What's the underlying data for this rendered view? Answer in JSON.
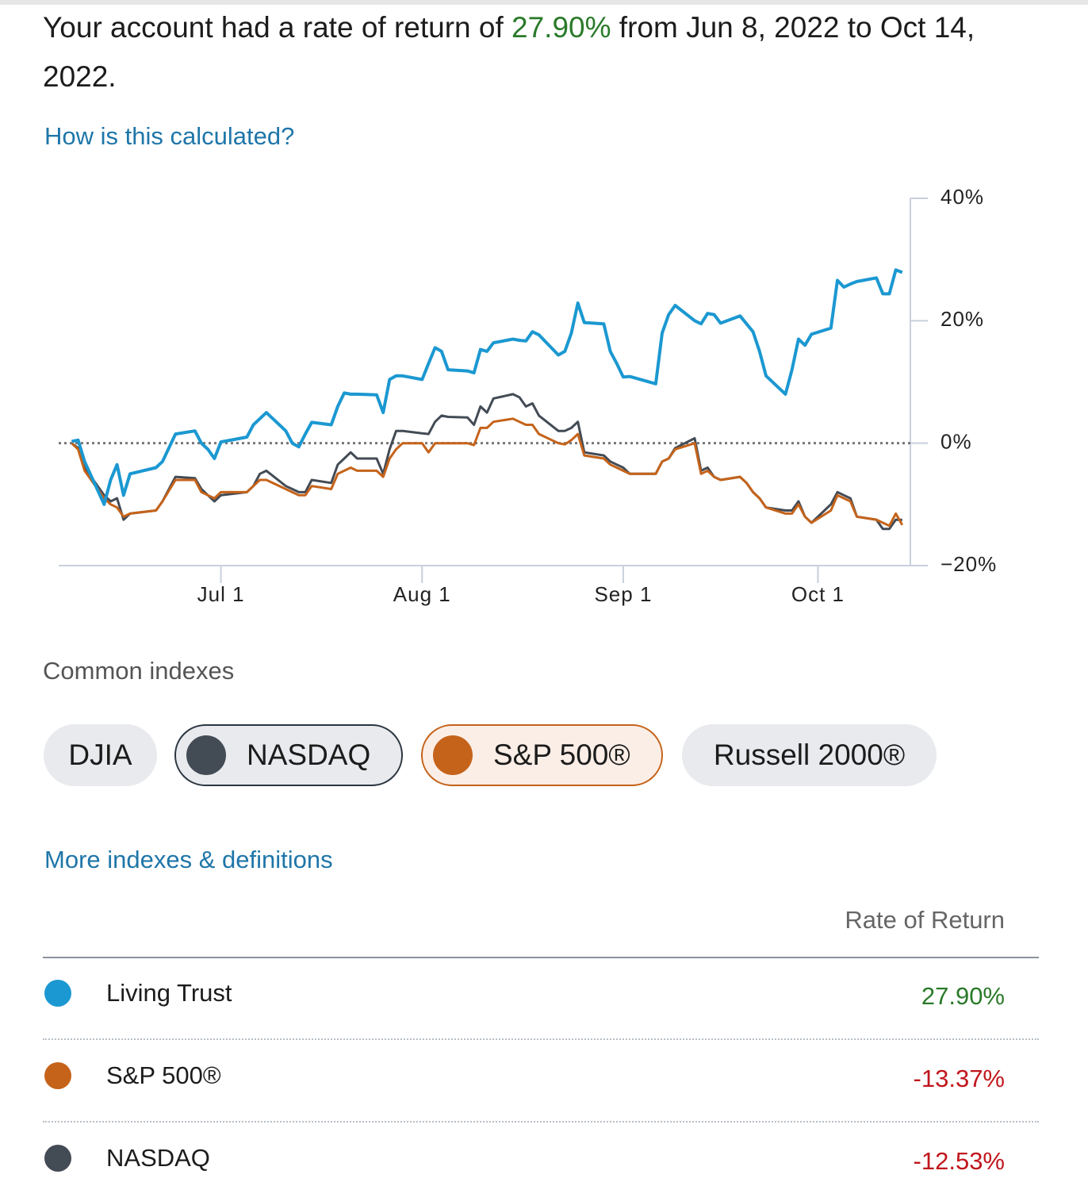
{
  "header": {
    "prefix": "Your account had a rate of return of ",
    "value": "27.90%",
    "suffix": " from Jun 8, 2022 to Oct 14, 2022."
  },
  "calc_link": "How is this calculated?",
  "chart_data": {
    "type": "line",
    "x": [
      "Jun 8",
      "Jun 9",
      "Jun 10",
      "Jun 13",
      "Jun 14",
      "Jun 15",
      "Jun 16",
      "Jun 17",
      "Jun 21",
      "Jun 22",
      "Jun 24",
      "Jun 27",
      "Jun 28",
      "Jun 29",
      "Jun 30",
      "Jul 1",
      "Jul 5",
      "Jul 6",
      "Jul 7",
      "Jul 8",
      "Jul 11",
      "Jul 12",
      "Jul 13",
      "Jul 14",
      "Jul 15",
      "Jul 18",
      "Jul 19",
      "Jul 20",
      "Jul 21",
      "Jul 22",
      "Jul 25",
      "Jul 26",
      "Jul 27",
      "Jul 28",
      "Jul 29",
      "Aug 1",
      "Aug 2",
      "Aug 3",
      "Aug 4",
      "Aug 5",
      "Aug 8",
      "Aug 9",
      "Aug 10",
      "Aug 11",
      "Aug 12",
      "Aug 15",
      "Aug 16",
      "Aug 17",
      "Aug 18",
      "Aug 19",
      "Aug 22",
      "Aug 23",
      "Aug 24",
      "Aug 25",
      "Aug 26",
      "Aug 29",
      "Aug 30",
      "Aug 31",
      "Sep 1",
      "Sep 2",
      "Sep 6",
      "Sep 7",
      "Sep 8",
      "Sep 9",
      "Sep 12",
      "Sep 13",
      "Sep 14",
      "Sep 15",
      "Sep 16",
      "Sep 19",
      "Sep 20",
      "Sep 21",
      "Sep 22",
      "Sep 23",
      "Sep 26",
      "Sep 27",
      "Sep 28",
      "Sep 29",
      "Sep 30",
      "Oct 3",
      "Oct 4",
      "Oct 5",
      "Oct 6",
      "Oct 7",
      "Oct 10",
      "Oct 11",
      "Oct 12",
      "Oct 13",
      "Oct 14"
    ],
    "series": [
      {
        "name": "Living Trust",
        "color": "#1b98d1",
        "values": [
          0.3,
          0.5,
          -3,
          -10,
          -6,
          -3.5,
          -8.5,
          -5,
          -4,
          -3,
          1.5,
          2,
          0,
          -1,
          -2.5,
          0.2,
          1,
          3,
          4,
          5,
          2,
          0,
          -0.6,
          1.5,
          3.4,
          3,
          6,
          8.2,
          8,
          8,
          7.9,
          5,
          10.4,
          11,
          11,
          10.4,
          13,
          15.6,
          15,
          12,
          11.8,
          11.5,
          15.3,
          15,
          16.4,
          17,
          16.8,
          16.7,
          18.2,
          17.7,
          14.4,
          15,
          18,
          22.9,
          19.7,
          19.5,
          15,
          13,
          10.8,
          10.9,
          9.7,
          18,
          21,
          22.5,
          20,
          19.5,
          21.2,
          21,
          19.6,
          20.8,
          19.5,
          18.2,
          15,
          11,
          8,
          12,
          17,
          16,
          17.8,
          18.8,
          26.6,
          25.5,
          26,
          26.4,
          27,
          24.4,
          24.4,
          28.3,
          27.9
        ]
      },
      {
        "name": "S&P 500®",
        "color": "#c5631a",
        "values": [
          0,
          -1,
          -4.5,
          -9,
          -10,
          -10.5,
          -12,
          -11.5,
          -11,
          -9.5,
          -6,
          -6,
          -8,
          -8.5,
          -9,
          -8,
          -8,
          -7,
          -6,
          -6,
          -7.5,
          -8,
          -8.5,
          -8.5,
          -7,
          -7.5,
          -5,
          -4.5,
          -4,
          -4.5,
          -4.5,
          -5.5,
          -2.5,
          -1,
          0,
          0,
          -1.5,
          0,
          0,
          0,
          0,
          -0.3,
          2.5,
          2.5,
          3.5,
          4,
          3.5,
          3,
          3,
          1.5,
          0,
          -0.2,
          0.5,
          1.5,
          -2,
          -2.5,
          -3.5,
          -4,
          -4.5,
          -5,
          -5,
          -3,
          -2.5,
          -1,
          0,
          -5,
          -4.5,
          -5.5,
          -6,
          -5.5,
          -6.5,
          -8,
          -9,
          -10.5,
          -11.5,
          -11.5,
          -10,
          -12,
          -13,
          -11,
          -8.5,
          -9,
          -9.5,
          -12,
          -12.5,
          -13,
          -13.5,
          -11.5,
          -13.37
        ]
      },
      {
        "name": "NASDAQ",
        "color": "#434b55",
        "values": [
          0,
          -0.8,
          -4,
          -8.5,
          -9.5,
          -9,
          -12.5,
          -11.5,
          -11,
          -9.5,
          -5.5,
          -5.7,
          -7.5,
          -8.5,
          -9.5,
          -8.5,
          -8,
          -7,
          -5,
          -4.5,
          -7,
          -7.5,
          -8,
          -8,
          -6,
          -6.5,
          -3.5,
          -2.5,
          -1.5,
          -2.5,
          -2.5,
          -5,
          -1,
          2,
          2,
          1.6,
          1.5,
          3.5,
          4.5,
          4.3,
          4.2,
          3,
          6,
          5,
          7.3,
          8,
          7.5,
          6,
          6.5,
          4.5,
          2,
          2,
          2.5,
          3.5,
          -1.5,
          -2,
          -3,
          -3.5,
          -4,
          -5,
          -5,
          -3,
          -2.5,
          -0.8,
          0.8,
          -4.5,
          -4,
          -5.5,
          -6,
          -5.5,
          -6.5,
          -8,
          -9,
          -10.5,
          -11,
          -11,
          -9.5,
          -12,
          -13,
          -10,
          -8,
          -8.5,
          -9,
          -12,
          -12.5,
          -14,
          -14,
          -12.5,
          -12.53
        ]
      }
    ],
    "xlim": [
      "Jun 6",
      "Oct 15"
    ],
    "xticks": [
      "Jul 1",
      "Aug 1",
      "Sep 1",
      "Oct 1"
    ],
    "ylim": [
      -20,
      40
    ],
    "yticks": [
      {
        "value": 40,
        "label": "40%"
      },
      {
        "value": 20,
        "label": "20%"
      },
      {
        "value": 0,
        "label": "0%"
      },
      {
        "value": -20,
        "label": "−20%"
      }
    ]
  },
  "indexes": {
    "title": "Common indexes",
    "buttons": [
      {
        "label": "DJIA",
        "selected": false
      },
      {
        "label": "NASDAQ",
        "selected": true,
        "color": "#434b55"
      },
      {
        "label": "S&P 500®",
        "selected": true,
        "color": "#c5631a"
      },
      {
        "label": "Russell 2000®",
        "selected": false
      }
    ],
    "more_link": "More indexes & definitions"
  },
  "table": {
    "header": "Rate of Return",
    "rows": [
      {
        "return": "27.90%",
        "tone": "positive"
      },
      {
        "return": "-13.37%",
        "tone": "negative"
      },
      {
        "return": "-12.53%",
        "tone": "negative"
      }
    ]
  }
}
